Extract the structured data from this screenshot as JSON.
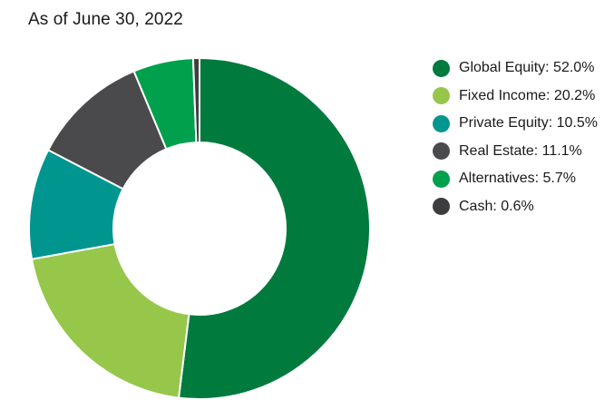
{
  "chart_data": {
    "type": "pie",
    "subtitle": "As of June 30, 2022",
    "categories": [
      "Global Equity",
      "Fixed Income",
      "Private Equity",
      "Real Estate",
      "Alternatives",
      "Cash"
    ],
    "values": [
      52.0,
      20.2,
      10.5,
      11.1,
      5.7,
      0.6
    ],
    "value_labels": [
      "52.0%",
      "20.2%",
      "10.5%",
      "11.1%",
      "5.7%",
      "0.6%"
    ],
    "colors": [
      "#007a3d",
      "#96c74a",
      "#00968f",
      "#4a4a4d",
      "#00a04c",
      "#3d3d40"
    ],
    "donut": true,
    "legend_position": "right"
  }
}
